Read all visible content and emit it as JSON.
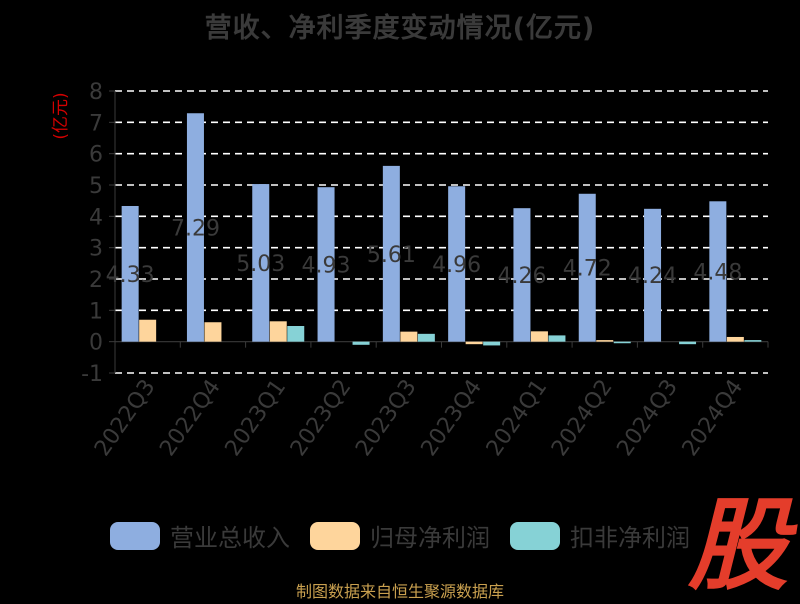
{
  "title": "营收、净利季度变动情况(亿元)",
  "footer": "制图数据来自恒生聚源数据库",
  "logo_text": "股",
  "colors": {
    "revenue": "#8eaee0",
    "net_profit": "#fed59c",
    "deducted_profit": "#86d2d6"
  },
  "legend": [
    {
      "label": "营业总收入",
      "color_key": "revenue"
    },
    {
      "label": "归母净利润",
      "color_key": "net_profit"
    },
    {
      "label": "扣非净利润",
      "color_key": "deducted_profit"
    }
  ],
  "chart_data": {
    "type": "bar",
    "title": "营收、净利季度变动情况(亿元)",
    "ylabel": "(亿元)",
    "ylim": [
      -1,
      8
    ],
    "yticks": [
      -1,
      0,
      1,
      2,
      3,
      4,
      5,
      6,
      7,
      8
    ],
    "categories": [
      "2022Q3",
      "2022Q4",
      "2023Q1",
      "2023Q2",
      "2023Q3",
      "2023Q4",
      "2024Q1",
      "2024Q2",
      "2024Q3",
      "2024Q4"
    ],
    "series": [
      {
        "name": "营业总收入",
        "color_key": "revenue",
        "values": [
          4.33,
          7.29,
          5.03,
          4.93,
          5.61,
          4.96,
          4.26,
          4.72,
          4.24,
          4.48
        ]
      },
      {
        "name": "归母净利润",
        "color_key": "net_profit",
        "values": [
          0.7,
          0.62,
          0.65,
          0.0,
          0.32,
          -0.08,
          0.33,
          0.05,
          0.0,
          0.15
        ]
      },
      {
        "name": "扣非净利润",
        "color_key": "deducted_profit",
        "values": [
          0.0,
          0.0,
          0.5,
          -0.1,
          0.25,
          -0.12,
          0.2,
          -0.05,
          -0.08,
          0.05
        ]
      }
    ],
    "data_labels": [
      "4.33",
      "7.29",
      "5.03",
      "4.93",
      "5.61",
      "4.96",
      "4.26",
      "4.72",
      "4.24",
      "4.48"
    ],
    "grid": true,
    "legend_position": "bottom"
  }
}
